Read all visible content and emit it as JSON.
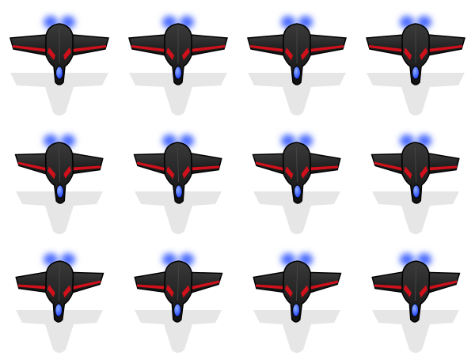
{
  "sprite_sheet": {
    "columns": 4,
    "rows": 3,
    "frames": [
      {
        "id": "frame-1",
        "bank": "level"
      },
      {
        "id": "frame-2",
        "bank": "level"
      },
      {
        "id": "frame-3",
        "bank": "level"
      },
      {
        "id": "frame-4",
        "bank": "level"
      },
      {
        "id": "frame-5",
        "bank": "left"
      },
      {
        "id": "frame-6",
        "bank": "left"
      },
      {
        "id": "frame-7",
        "bank": "left"
      },
      {
        "id": "frame-8",
        "bank": "left"
      },
      {
        "id": "frame-9",
        "bank": "right"
      },
      {
        "id": "frame-10",
        "bank": "right"
      },
      {
        "id": "frame-11",
        "bank": "right"
      },
      {
        "id": "frame-12",
        "bank": "right"
      }
    ]
  },
  "colors": {
    "background": "#ffffff",
    "hull": "#111111",
    "hull_highlight": "#3a3a3a",
    "trim": "#d0101a",
    "cockpit": "#1a3cff",
    "engine_glow": "#4a6bff",
    "shadow": "#e6e6e6"
  },
  "icons": [
    "spaceship-icon",
    "engine-glow-icon",
    "shadow-icon"
  ]
}
